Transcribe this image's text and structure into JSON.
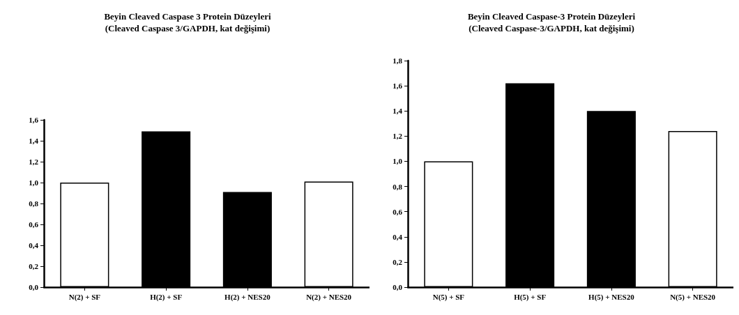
{
  "chart_data": [
    {
      "type": "bar",
      "title": "Beyin Cleaved Caspase 3 Protein Düzeyleri\n(Cleaved Caspase 3/GAPDH, kat değişimi)",
      "categories": [
        "N(2) + SF",
        "H(2) + SF",
        "H(2) + NES20",
        "N(2) + NES20"
      ],
      "values": [
        1.0,
        1.49,
        0.91,
        1.01
      ],
      "colors": [
        "#ffffff",
        "#000000",
        "#000000",
        "#ffffff"
      ],
      "ylim": [
        0,
        1.6
      ],
      "yticks": [
        {
          "value": 0,
          "label": "0,0"
        },
        {
          "value": 0.2,
          "label": "0,2"
        },
        {
          "value": 0.4,
          "label": "0,4"
        },
        {
          "value": 0.6,
          "label": "0,6"
        },
        {
          "value": 0.8,
          "label": "0,8"
        },
        {
          "value": 1.0,
          "label": "1,0"
        },
        {
          "value": 1.2,
          "label": "1,2"
        },
        {
          "value": 1.4,
          "label": "1,4"
        },
        {
          "value": 1.6,
          "label": "1,6"
        }
      ],
      "grid": false
    },
    {
      "type": "bar",
      "title": "Beyin Cleaved Caspase-3 Protein Düzeyleri\n(Cleaved Caspase-3/GAPDH, kat değişimi)",
      "categories": [
        "N(5) + SF",
        "H(5) + SF",
        "H(5) + NES20",
        "N(5) + NES20"
      ],
      "values": [
        1.0,
        1.62,
        1.4,
        1.24
      ],
      "colors": [
        "#ffffff",
        "#000000",
        "#000000",
        "#ffffff"
      ],
      "ylim": [
        0,
        1.8
      ],
      "yticks": [
        {
          "value": 0,
          "label": "0,0"
        },
        {
          "value": 0.2,
          "label": "0,2"
        },
        {
          "value": 0.4,
          "label": "0,4"
        },
        {
          "value": 0.6,
          "label": "0,6"
        },
        {
          "value": 0.8,
          "label": "0,8"
        },
        {
          "value": 1.0,
          "label": "1,0"
        },
        {
          "value": 1.2,
          "label": "1,2"
        },
        {
          "value": 1.4,
          "label": "1,4"
        },
        {
          "value": 1.6,
          "label": "1,6"
        },
        {
          "value": 1.8,
          "label": "1,8"
        }
      ],
      "grid": false
    }
  ]
}
